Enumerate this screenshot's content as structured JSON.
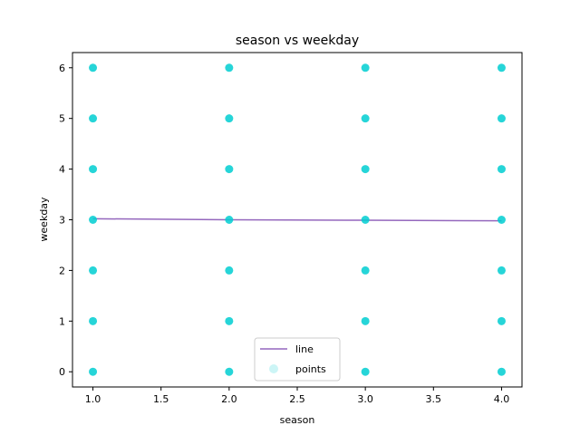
{
  "chart_data": {
    "type": "scatter",
    "title": "season vs weekday",
    "xlabel": "season",
    "ylabel": "weekday",
    "xlim": [
      0.85,
      4.15
    ],
    "ylim": [
      -0.3,
      6.3
    ],
    "xticks": [
      1.0,
      1.5,
      2.0,
      2.5,
      3.0,
      3.5,
      4.0
    ],
    "xtick_labels": [
      "1.0",
      "1.5",
      "2.0",
      "2.5",
      "3.0",
      "3.5",
      "4.0"
    ],
    "yticks": [
      0,
      1,
      2,
      3,
      4,
      5,
      6
    ],
    "ytick_labels": [
      "0",
      "1",
      "2",
      "3",
      "4",
      "5",
      "6"
    ],
    "grid": false,
    "legend_position": "lower center",
    "series": [
      {
        "name": "line",
        "kind": "line",
        "color": "#9467bd",
        "x": [
          1,
          2,
          3,
          4
        ],
        "y": [
          3.02,
          3.0,
          2.99,
          2.98
        ]
      },
      {
        "name": "points",
        "kind": "scatter",
        "color": "#00ced1",
        "x": [
          1,
          1,
          1,
          1,
          1,
          1,
          1,
          2,
          2,
          2,
          2,
          2,
          2,
          2,
          3,
          3,
          3,
          3,
          3,
          3,
          3,
          4,
          4,
          4,
          4,
          4,
          4,
          4
        ],
        "y": [
          0,
          1,
          2,
          3,
          4,
          5,
          6,
          0,
          1,
          2,
          3,
          4,
          5,
          6,
          0,
          1,
          2,
          3,
          4,
          5,
          6,
          0,
          1,
          2,
          3,
          4,
          5,
          6
        ]
      }
    ]
  }
}
